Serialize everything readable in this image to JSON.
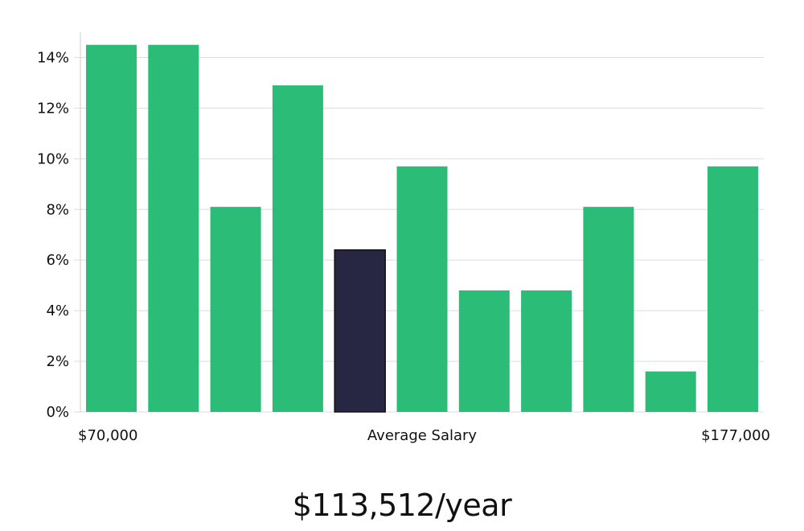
{
  "chart_data": {
    "type": "bar",
    "title": "",
    "xlabel": "",
    "ylabel": "",
    "y_unit": "%",
    "ylim": [
      0,
      15
    ],
    "yticks": [
      0,
      2,
      4,
      6,
      8,
      10,
      12,
      14
    ],
    "values": [
      14.5,
      14.5,
      8.1,
      12.9,
      6.4,
      9.7,
      4.8,
      4.8,
      8.1,
      1.6,
      9.7
    ],
    "highlight_index": 4,
    "x_labels": {
      "left": "$70,000",
      "center": "Average Salary",
      "right": "$177,000"
    },
    "grid": true,
    "colors": {
      "bar": "#2bbd77",
      "highlight": "#272643",
      "highlight_outline": "#111111",
      "grid": "#dddddd",
      "axis": "#cccccc"
    }
  },
  "summary": {
    "salary_text": "$113,512/year"
  }
}
